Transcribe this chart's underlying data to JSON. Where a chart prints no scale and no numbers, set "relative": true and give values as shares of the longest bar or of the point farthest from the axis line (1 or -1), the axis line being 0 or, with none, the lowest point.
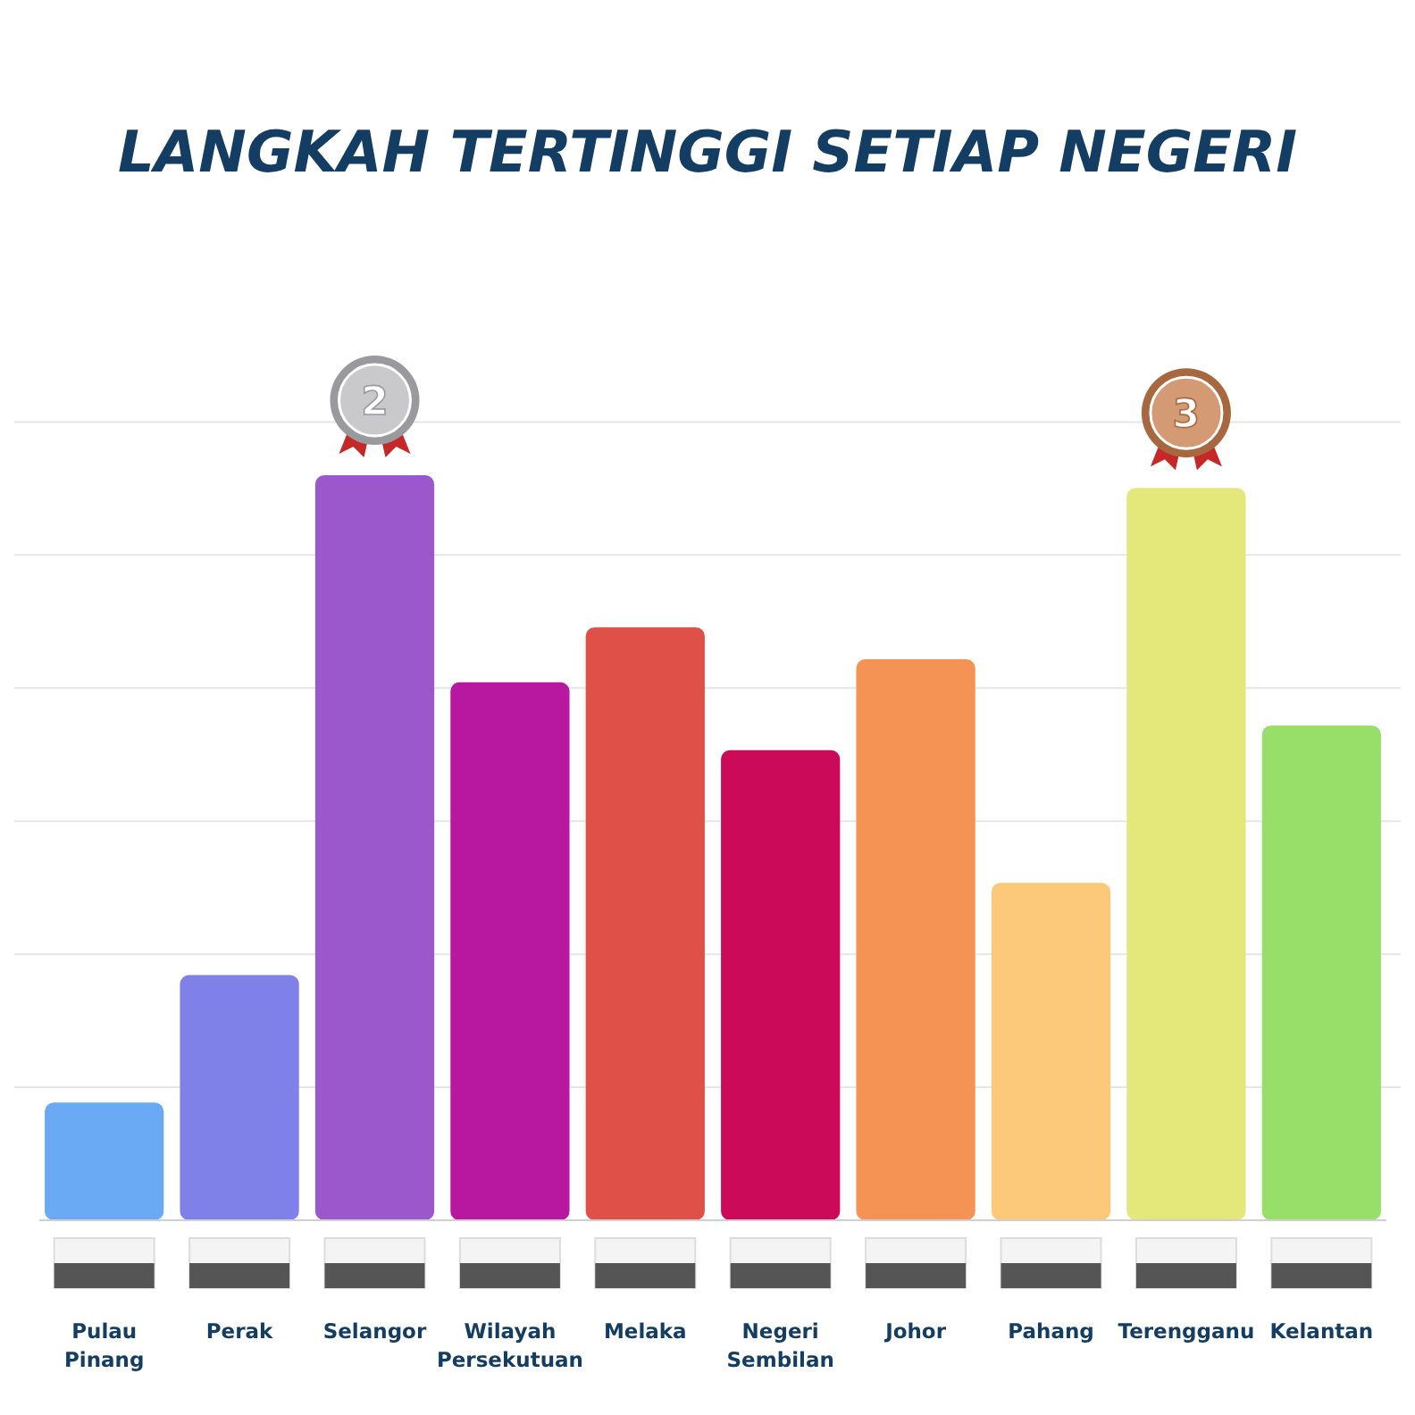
{
  "chart_data": {
    "type": "bar",
    "title": "LANGKAH TERTINGGI SETIAP NEGERI",
    "relative": true,
    "grid": "y",
    "categories": [
      "Pulau Pinang",
      "Perak",
      "Selangor",
      "Wilayah Persekutuan",
      "Melaka",
      "Negeri Sembilan",
      "Johor",
      "Pahang",
      "Terengganu",
      "Kelantan"
    ],
    "values": [
      0.158,
      0.329,
      1,
      0.722,
      0.796,
      0.631,
      0.753,
      0.453,
      0.983,
      0.664
    ],
    "colors": [
      "#6aaaf5",
      "#7f80e8",
      "#9b58cc",
      "#b817a0",
      "#df5048",
      "#cc0a5a",
      "#f59354",
      "#fcc97a",
      "#e4e77a",
      "#98df6a"
    ],
    "annotations": [
      "2",
      "3"
    ]
  }
}
